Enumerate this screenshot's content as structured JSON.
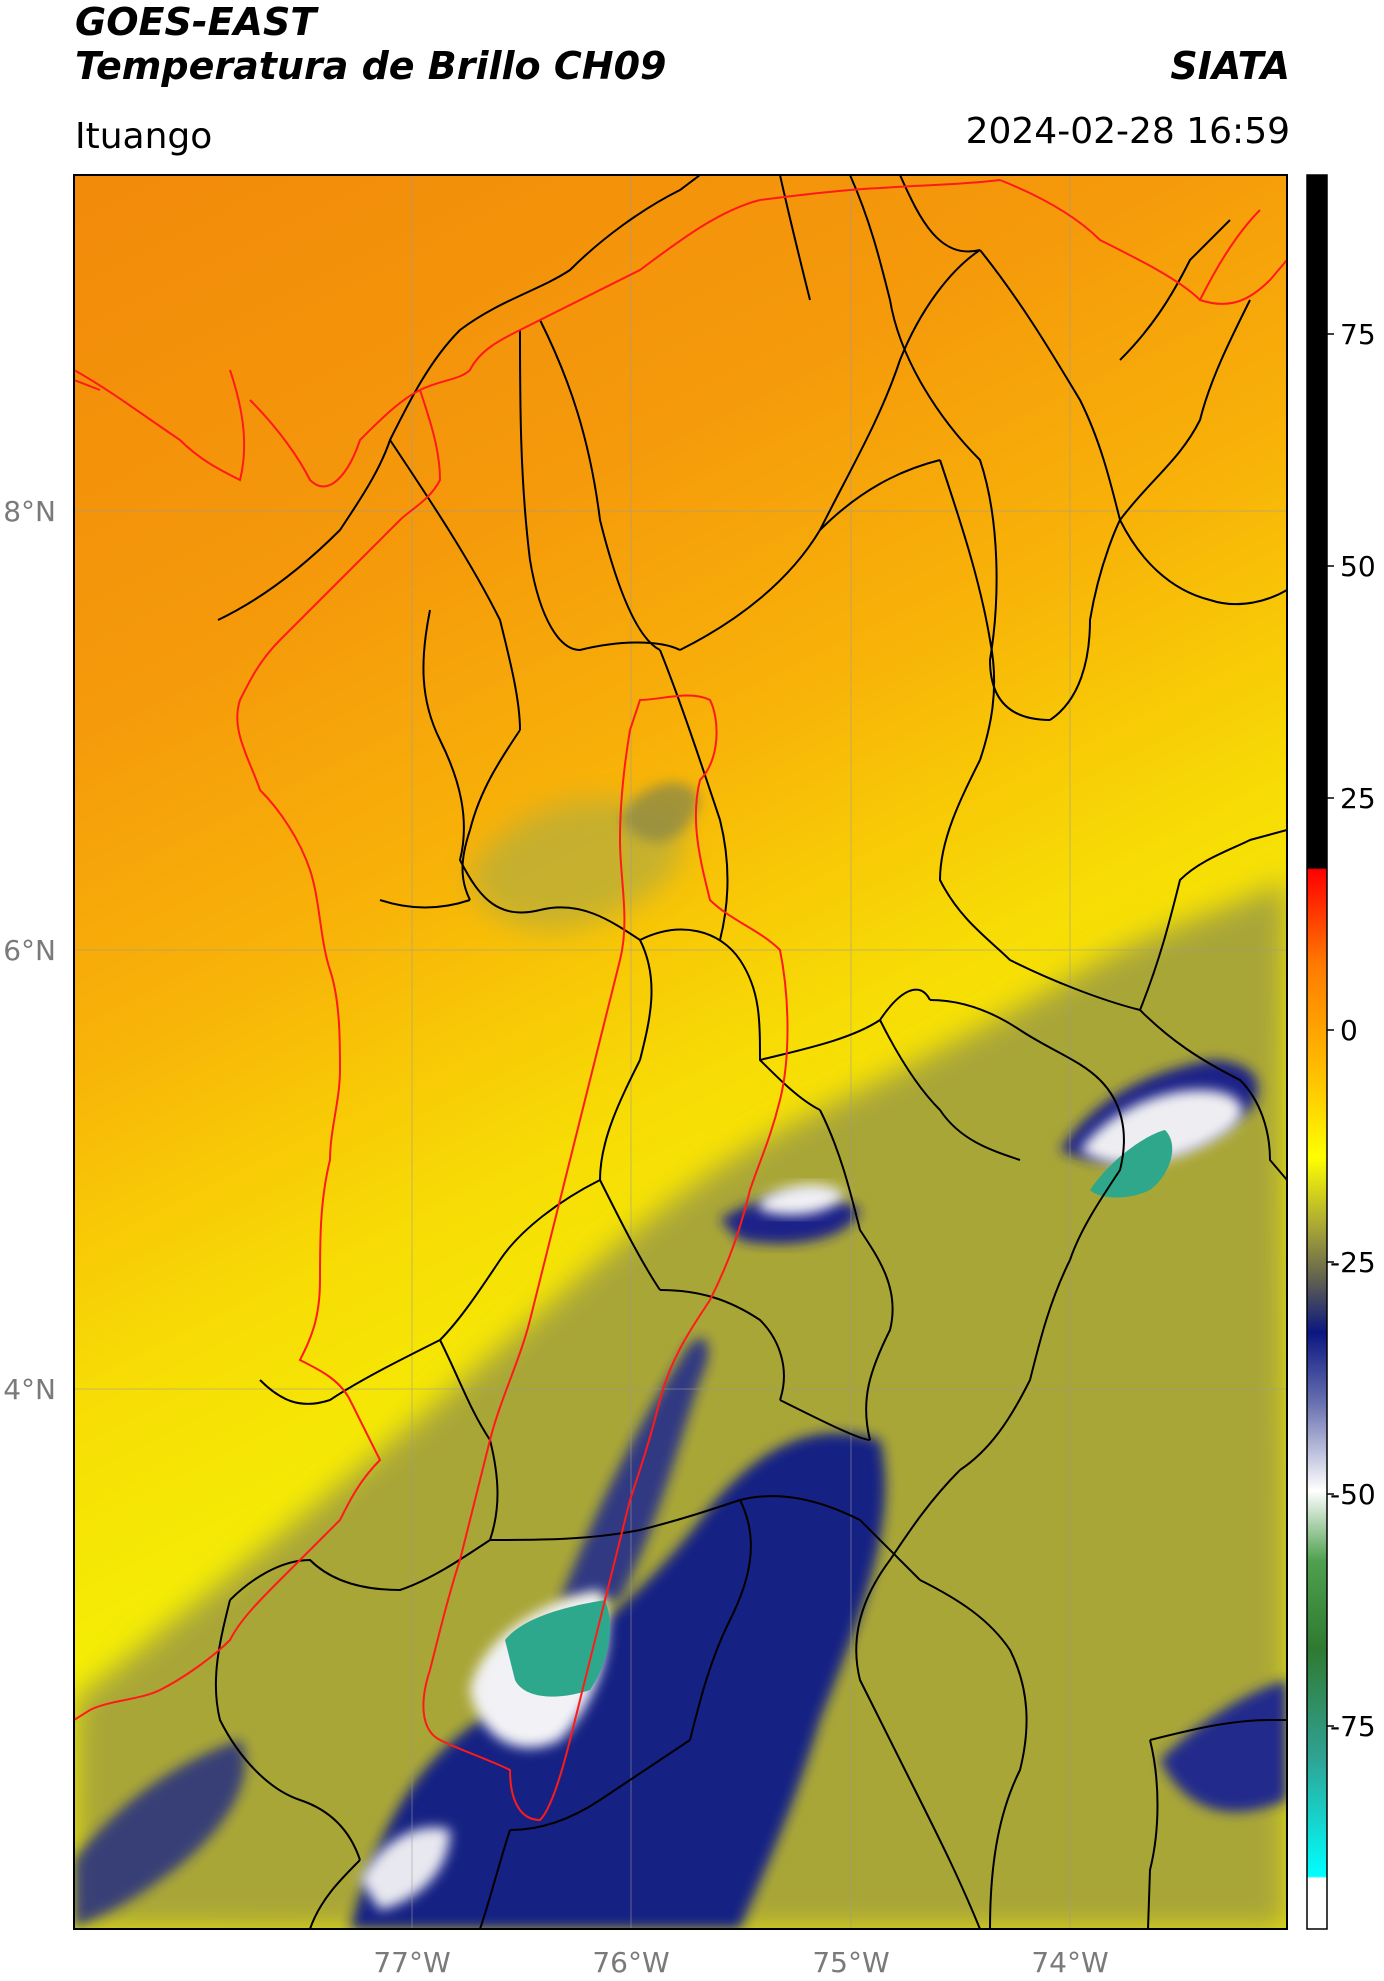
{
  "header": {
    "title_line1": "GOES-EAST",
    "title_line2": "Temperatura de Brillo CH09",
    "organization": "SIATA",
    "region": "Ituango",
    "datetime": "2024-02-28 16:59"
  },
  "map": {
    "lon_ticks": [
      "77°W",
      "76°W",
      "75°W",
      "74°W"
    ],
    "lat_ticks": [
      "8°N",
      "6°N",
      "4°N"
    ],
    "colors": {
      "warm_dark": "#f28a0a",
      "warm": "#f7a30a",
      "yellow": "#f5ef05",
      "olive": "#a8a636",
      "navy": "#101a80",
      "white": "#f4f4f4",
      "green": "#2ca58a",
      "boundary": "#000000",
      "basin": "#ff1a1a"
    }
  },
  "colorbar": {
    "ticks": [
      "75",
      "50",
      "25",
      "0",
      "-25",
      "-50",
      "-75"
    ]
  }
}
